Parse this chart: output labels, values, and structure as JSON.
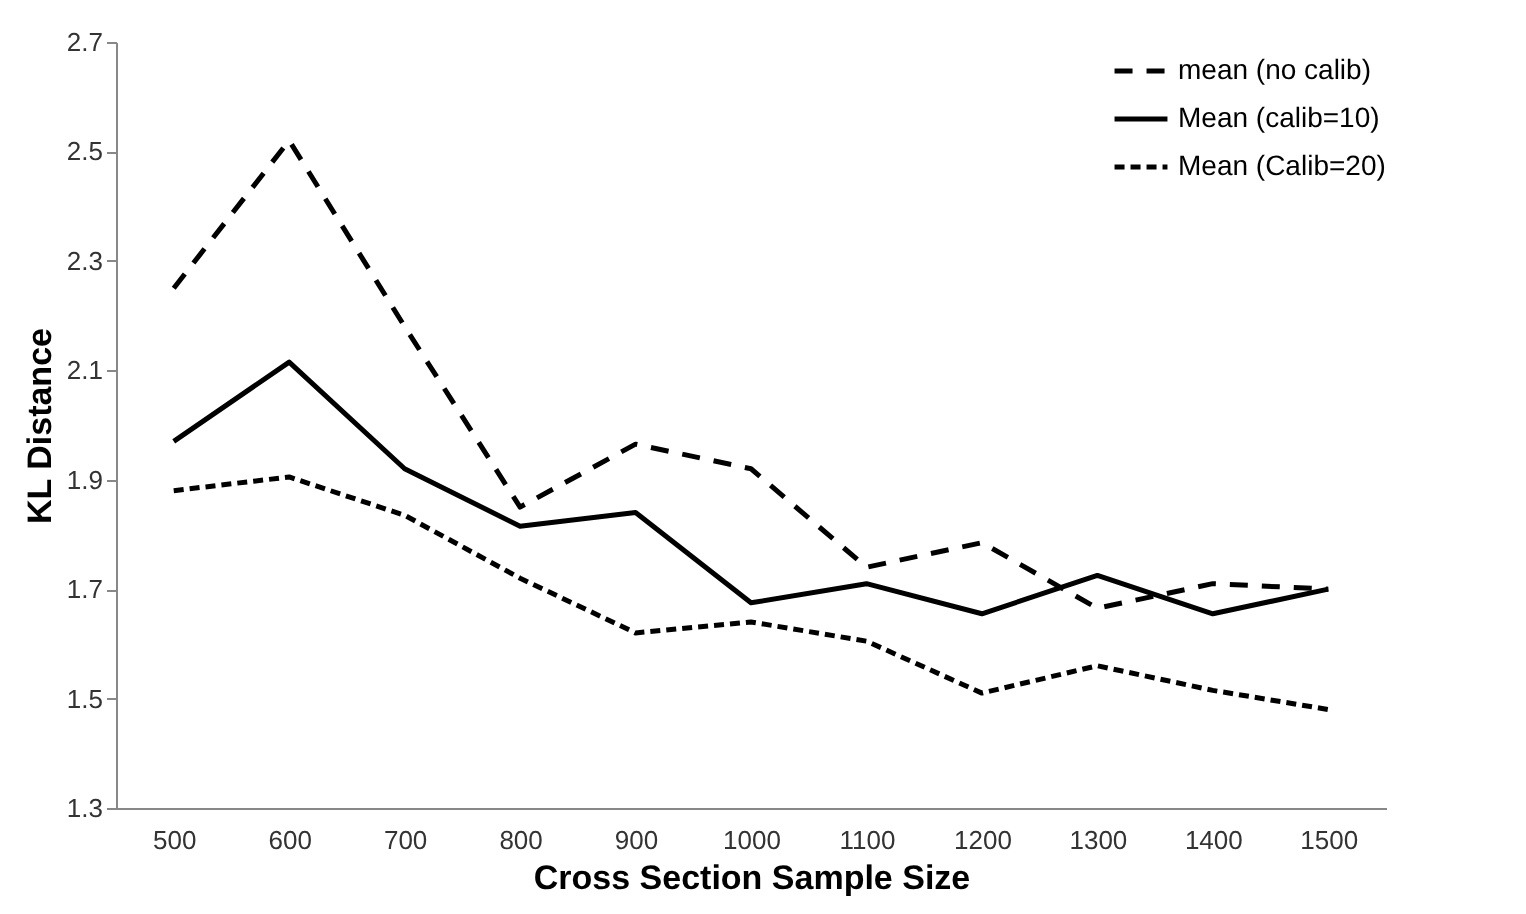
{
  "chart_data": {
    "type": "line",
    "xlabel": "Cross Section Sample Size",
    "ylabel": "KL Distance",
    "categories": [
      "500",
      "600",
      "700",
      "800",
      "900",
      "1000",
      "1100",
      "1200",
      "1300",
      "1400",
      "1500"
    ],
    "series": [
      {
        "name": "mean (no calib)",
        "color": "#000000",
        "line_style": "dashed",
        "values": [
          2.25,
          2.52,
          2.18,
          1.85,
          1.965,
          1.92,
          1.74,
          1.785,
          1.665,
          1.71,
          1.7
        ]
      },
      {
        "name": "Mean (calib=10)",
        "color": "#000000",
        "line_style": "solid",
        "values": [
          1.97,
          2.115,
          1.92,
          1.815,
          1.84,
          1.675,
          1.71,
          1.655,
          1.725,
          1.655,
          1.7
        ]
      },
      {
        "name": "Mean (Calib=20)",
        "color": "#000000",
        "line_style": "dotted",
        "values": [
          1.88,
          1.905,
          1.835,
          1.72,
          1.62,
          1.64,
          1.605,
          1.51,
          1.56,
          1.515,
          1.48
        ]
      }
    ],
    "ylim": [
      1.3,
      2.7
    ],
    "yticks": [
      1.3,
      1.5,
      1.7,
      1.9,
      2.1,
      2.3,
      2.5,
      2.7
    ],
    "grid": false,
    "legend": "top right",
    "marker": "none"
  }
}
